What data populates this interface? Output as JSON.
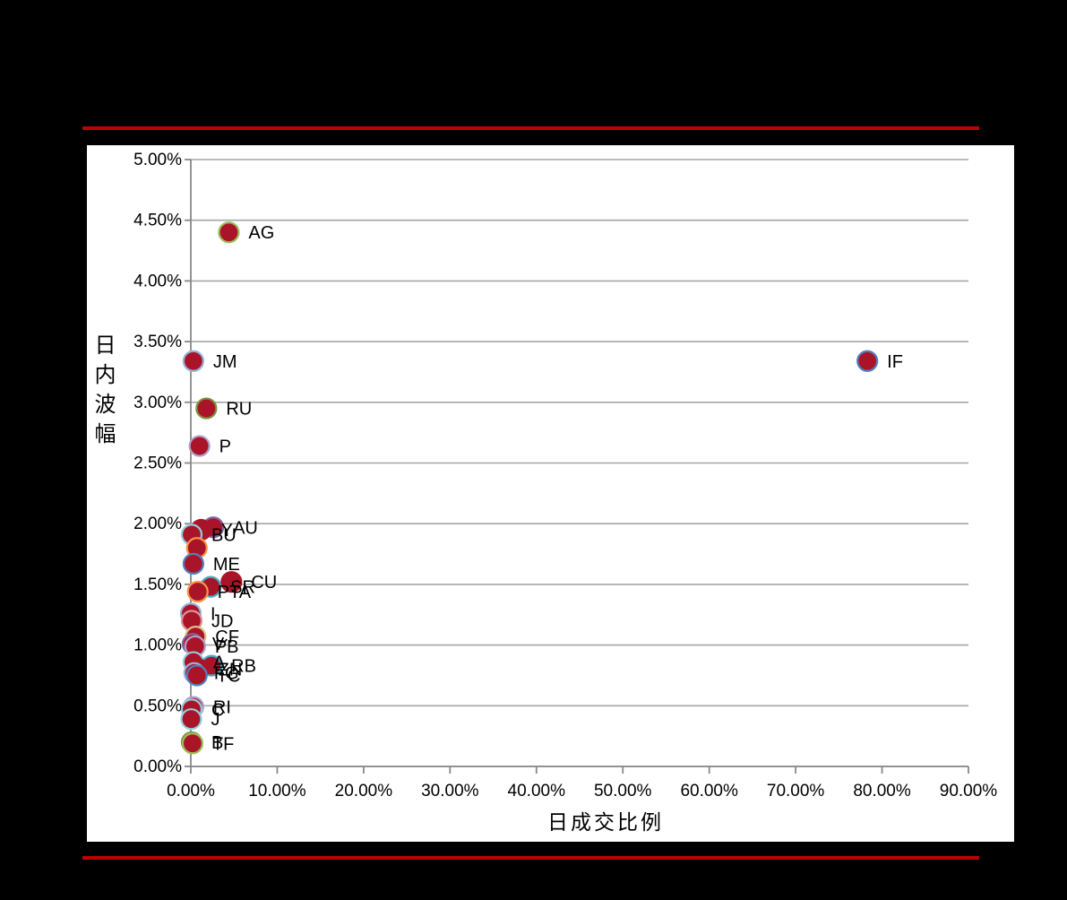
{
  "frame": {
    "background_color": "#000000",
    "plot_background_color": "#FFFFFF",
    "accent_line_color": "#C00000"
  },
  "chart_data": {
    "type": "scatter",
    "title": "",
    "xlabel": "日成交比例",
    "ylabel": "日内波幅",
    "xlim": [
      0,
      90
    ],
    "ylim": [
      0,
      5
    ],
    "x_ticks": [
      "0.00%",
      "10.00%",
      "20.00%",
      "30.00%",
      "40.00%",
      "50.00%",
      "60.00%",
      "70.00%",
      "80.00%",
      "90.00%"
    ],
    "y_ticks": [
      "0.00%",
      "0.50%",
      "1.00%",
      "1.50%",
      "2.00%",
      "2.50%",
      "3.00%",
      "3.50%",
      "4.00%",
      "4.50%",
      "5.00%"
    ],
    "grid": "horizontal",
    "legend": "none",
    "marker_fill": "#AA1428",
    "gridline_color": "#A6A6A6",
    "axis_color": "#898989",
    "points": [
      {
        "label": "AG",
        "x": 4.4,
        "y": 4.4,
        "border": "#9BBB59"
      },
      {
        "label": "JM",
        "x": 0.3,
        "y": 3.34,
        "border": "#95B3D7"
      },
      {
        "label": "IF",
        "x": 78.3,
        "y": 3.34,
        "border": "#4F81BD"
      },
      {
        "label": "RU",
        "x": 1.8,
        "y": 2.95,
        "border": "#77933C"
      },
      {
        "label": "P",
        "x": 1.0,
        "y": 2.64,
        "border": "#B1A0C7"
      },
      {
        "label": "AU",
        "x": 2.6,
        "y": 1.97,
        "border": "#8064A2"
      },
      {
        "label": "Y",
        "x": 1.2,
        "y": 1.95,
        "border": "#AA1428"
      },
      {
        "label": "BU",
        "x": 0.1,
        "y": 1.91,
        "border": "#93CDDD"
      },
      {
        "label": "",
        "x": 0.7,
        "y": 1.8,
        "border": "#F79646"
      },
      {
        "label": "ME",
        "x": 0.3,
        "y": 1.67,
        "border": "#4F81BD"
      },
      {
        "label": "CU",
        "x": 4.7,
        "y": 1.52,
        "border": "#AA1428"
      },
      {
        "label": "SR",
        "x": 2.3,
        "y": 1.48,
        "border": "#4BACC6"
      },
      {
        "label": "PTA",
        "x": 0.8,
        "y": 1.44,
        "border": "#F79646"
      },
      {
        "label": "I",
        "x": 0.0,
        "y": 1.26,
        "border": "#95B3D7"
      },
      {
        "label": "JD",
        "x": 0.1,
        "y": 1.2,
        "border": "#D99694"
      },
      {
        "label": "CF",
        "x": 0.55,
        "y": 1.07,
        "border": "#DBC287"
      },
      {
        "label": "V",
        "x": 0.2,
        "y": 1.01,
        "border": "#8064A2"
      },
      {
        "label": "PB",
        "x": 0.5,
        "y": 0.99,
        "border": "#B1A0C7"
      },
      {
        "label": "A",
        "x": 0.3,
        "y": 0.86,
        "border": "#93CDDD"
      },
      {
        "label": "RB",
        "x": 2.4,
        "y": 0.83,
        "border": "#4BACC6"
      },
      {
        "label": "ZN",
        "x": 0.9,
        "y": 0.8,
        "border": "#AA1428"
      },
      {
        "label": "FG",
        "x": 0.4,
        "y": 0.77,
        "border": "#95B3D7"
      },
      {
        "label": "TC",
        "x": 0.7,
        "y": 0.75,
        "border": "#4F81BD"
      },
      {
        "label": "RI",
        "x": 0.3,
        "y": 0.49,
        "border": "#B1A0C7"
      },
      {
        "label": "C",
        "x": 0.1,
        "y": 0.47,
        "border": "#93CDDD"
      },
      {
        "label": "J",
        "x": 0.05,
        "y": 0.39,
        "border": "#93CDDD"
      },
      {
        "label": "B",
        "x": 0.1,
        "y": 0.2,
        "border": "#77933C"
      },
      {
        "label": "TF",
        "x": 0.2,
        "y": 0.19,
        "border": "#9BBB59"
      }
    ]
  }
}
